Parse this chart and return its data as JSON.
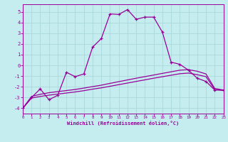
{
  "bg_color": "#c5ecee",
  "grid_color": "#aad8dc",
  "line_color": "#990099",
  "xlim": [
    0,
    23
  ],
  "ylim": [
    -4.5,
    5.7
  ],
  "xtick_vals": [
    0,
    1,
    2,
    3,
    4,
    5,
    6,
    7,
    8,
    9,
    10,
    11,
    12,
    13,
    14,
    15,
    16,
    17,
    18,
    19,
    20,
    21,
    22,
    23
  ],
  "ytick_vals": [
    -4,
    -3,
    -2,
    -1,
    0,
    1,
    2,
    3,
    4,
    5
  ],
  "xlabel": "Windchill (Refroidissement éolien,°C)",
  "main_x": [
    0,
    1,
    2,
    3,
    4,
    5,
    6,
    7,
    8,
    9,
    10,
    11,
    12,
    13,
    14,
    15,
    16,
    17,
    18,
    19,
    20,
    21,
    22,
    23
  ],
  "main_y": [
    -4.0,
    -3.0,
    -2.2,
    -3.2,
    -2.8,
    -0.65,
    -1.05,
    -0.8,
    1.7,
    2.5,
    4.8,
    4.75,
    5.2,
    4.3,
    4.5,
    4.5,
    3.1,
    0.3,
    0.1,
    -0.45,
    -1.2,
    -1.5,
    -2.3,
    -2.3
  ],
  "band_upper_x": [
    0,
    1,
    2,
    3,
    4,
    5,
    6,
    7,
    8,
    9,
    10,
    11,
    12,
    13,
    14,
    15,
    16,
    17,
    18,
    19,
    20,
    21,
    22,
    23
  ],
  "band_upper_y": [
    -4.0,
    -2.9,
    -2.7,
    -2.55,
    -2.45,
    -2.35,
    -2.25,
    -2.12,
    -1.98,
    -1.85,
    -1.68,
    -1.52,
    -1.36,
    -1.2,
    -1.05,
    -0.9,
    -0.75,
    -0.6,
    -0.45,
    -0.4,
    -0.55,
    -0.8,
    -2.15,
    -2.3
  ],
  "band_lower_x": [
    0,
    1,
    2,
    3,
    4,
    5,
    6,
    7,
    8,
    9,
    10,
    11,
    12,
    13,
    14,
    15,
    16,
    17,
    18,
    19,
    20,
    21,
    22,
    23
  ],
  "band_lower_y": [
    -4.0,
    -3.05,
    -2.9,
    -2.78,
    -2.68,
    -2.58,
    -2.48,
    -2.36,
    -2.22,
    -2.1,
    -1.95,
    -1.8,
    -1.65,
    -1.5,
    -1.35,
    -1.2,
    -1.06,
    -0.92,
    -0.78,
    -0.72,
    -0.87,
    -1.05,
    -2.25,
    -2.35
  ]
}
